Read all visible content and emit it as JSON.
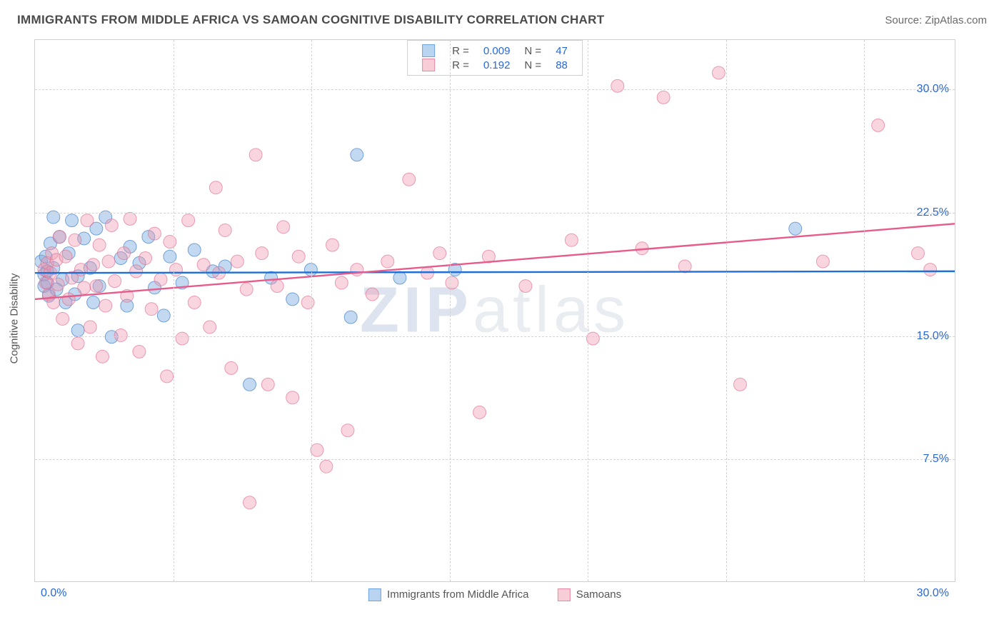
{
  "header": {
    "title": "IMMIGRANTS FROM MIDDLE AFRICA VS SAMOAN COGNITIVE DISABILITY CORRELATION CHART",
    "source_prefix": "Source: ",
    "source_name": "ZipAtlas.com"
  },
  "chart": {
    "type": "scatter",
    "ylabel": "Cognitive Disability",
    "watermark_bold": "ZIP",
    "watermark_rest": "atlas",
    "xlim": [
      0,
      30
    ],
    "ylim": [
      0,
      33
    ],
    "xtick_min_label": "0.0%",
    "xtick_max_label": "30.0%",
    "ytick_labels": [
      "7.5%",
      "15.0%",
      "22.5%",
      "30.0%"
    ],
    "ytick_values": [
      7.5,
      15.0,
      22.5,
      30.0
    ],
    "x_gridline_values": [
      4.5,
      9.0,
      13.5,
      18.0,
      22.5,
      27.0
    ],
    "grid_color": "#d5d5d5",
    "background_color": "#ffffff",
    "series": [
      {
        "name": "Immigrants from Middle Africa",
        "swatch_fill": "#b9d4f0",
        "swatch_stroke": "#6fa3dd",
        "marker_fill": "rgba(120,170,225,0.45)",
        "marker_stroke": "rgba(70,130,200,0.7)",
        "marker_radius": 9,
        "r_value": "0.009",
        "n_value": "47",
        "trend": {
          "y_at_xmin": 18.8,
          "y_at_xmax": 18.9,
          "stroke": "#1f6fd4",
          "width": 2.4
        },
        "points": [
          [
            0.2,
            19.5
          ],
          [
            0.3,
            18.0
          ],
          [
            0.3,
            18.7
          ],
          [
            0.35,
            19.8
          ],
          [
            0.4,
            18.2
          ],
          [
            0.4,
            18.9
          ],
          [
            0.45,
            17.4
          ],
          [
            0.5,
            20.6
          ],
          [
            0.6,
            22.2
          ],
          [
            0.6,
            19.1
          ],
          [
            0.7,
            17.8
          ],
          [
            0.8,
            21.0
          ],
          [
            0.9,
            18.4
          ],
          [
            1.0,
            17.0
          ],
          [
            1.1,
            20.0
          ],
          [
            1.2,
            22.0
          ],
          [
            1.3,
            17.5
          ],
          [
            1.4,
            15.3
          ],
          [
            1.4,
            18.6
          ],
          [
            1.6,
            20.9
          ],
          [
            1.8,
            19.1
          ],
          [
            1.9,
            17.0
          ],
          [
            2.0,
            21.5
          ],
          [
            2.1,
            18.0
          ],
          [
            2.3,
            22.2
          ],
          [
            2.5,
            14.9
          ],
          [
            2.8,
            19.7
          ],
          [
            3.0,
            16.8
          ],
          [
            3.1,
            20.4
          ],
          [
            3.4,
            19.4
          ],
          [
            3.7,
            21.0
          ],
          [
            3.9,
            17.9
          ],
          [
            4.2,
            16.2
          ],
          [
            4.4,
            19.8
          ],
          [
            4.8,
            18.2
          ],
          [
            5.2,
            20.2
          ],
          [
            5.8,
            18.9
          ],
          [
            6.2,
            19.2
          ],
          [
            7.0,
            12.0
          ],
          [
            7.7,
            18.5
          ],
          [
            8.4,
            17.2
          ],
          [
            9.0,
            19.0
          ],
          [
            10.3,
            16.1
          ],
          [
            10.5,
            26.0
          ],
          [
            11.9,
            18.5
          ],
          [
            13.7,
            19.0
          ],
          [
            24.8,
            21.5
          ]
        ]
      },
      {
        "name": "Samoans",
        "swatch_fill": "#f7cdd8",
        "swatch_stroke": "#e88aa5",
        "marker_fill": "rgba(240,150,175,0.40)",
        "marker_stroke": "rgba(225,110,145,0.65)",
        "marker_radius": 9,
        "r_value": "0.192",
        "n_value": "88",
        "trend": {
          "y_at_xmin": 17.2,
          "y_at_xmax": 21.8,
          "stroke": "#e75b8a",
          "width": 2.4
        },
        "points": [
          [
            0.3,
            19.0
          ],
          [
            0.35,
            18.2
          ],
          [
            0.4,
            19.4
          ],
          [
            0.45,
            17.5
          ],
          [
            0.5,
            18.8
          ],
          [
            0.55,
            20.0
          ],
          [
            0.6,
            17.0
          ],
          [
            0.7,
            19.6
          ],
          [
            0.75,
            18.1
          ],
          [
            0.8,
            21.0
          ],
          [
            0.9,
            16.0
          ],
          [
            1.0,
            19.8
          ],
          [
            1.1,
            17.2
          ],
          [
            1.2,
            18.5
          ],
          [
            1.3,
            20.8
          ],
          [
            1.4,
            14.5
          ],
          [
            1.5,
            19.0
          ],
          [
            1.6,
            17.9
          ],
          [
            1.7,
            22.0
          ],
          [
            1.8,
            15.5
          ],
          [
            1.9,
            19.3
          ],
          [
            2.0,
            18.0
          ],
          [
            2.1,
            20.5
          ],
          [
            2.2,
            13.7
          ],
          [
            2.3,
            16.8
          ],
          [
            2.4,
            19.5
          ],
          [
            2.5,
            21.7
          ],
          [
            2.6,
            18.3
          ],
          [
            2.8,
            15.0
          ],
          [
            2.9,
            20.0
          ],
          [
            3.0,
            17.4
          ],
          [
            3.1,
            22.1
          ],
          [
            3.3,
            18.9
          ],
          [
            3.4,
            14.0
          ],
          [
            3.6,
            19.7
          ],
          [
            3.8,
            16.6
          ],
          [
            3.9,
            21.2
          ],
          [
            4.1,
            18.4
          ],
          [
            4.3,
            12.5
          ],
          [
            4.4,
            20.7
          ],
          [
            4.6,
            19.0
          ],
          [
            4.8,
            14.8
          ],
          [
            5.0,
            22.0
          ],
          [
            5.2,
            17.0
          ],
          [
            5.5,
            19.3
          ],
          [
            5.7,
            15.5
          ],
          [
            5.9,
            24.0
          ],
          [
            6.0,
            18.8
          ],
          [
            6.2,
            21.4
          ],
          [
            6.4,
            13.0
          ],
          [
            6.6,
            19.5
          ],
          [
            6.9,
            17.8
          ],
          [
            7.0,
            4.8
          ],
          [
            7.2,
            26.0
          ],
          [
            7.4,
            20.0
          ],
          [
            7.6,
            12.0
          ],
          [
            7.9,
            18.0
          ],
          [
            8.1,
            21.6
          ],
          [
            8.4,
            11.2
          ],
          [
            8.6,
            19.8
          ],
          [
            8.9,
            17.0
          ],
          [
            9.2,
            8.0
          ],
          [
            9.5,
            7.0
          ],
          [
            9.7,
            20.5
          ],
          [
            10.0,
            18.2
          ],
          [
            10.2,
            9.2
          ],
          [
            10.5,
            19.0
          ],
          [
            11.0,
            17.5
          ],
          [
            11.5,
            19.5
          ],
          [
            12.2,
            24.5
          ],
          [
            12.8,
            18.8
          ],
          [
            13.2,
            20.0
          ],
          [
            13.6,
            18.2
          ],
          [
            14.5,
            10.3
          ],
          [
            14.8,
            19.8
          ],
          [
            16.0,
            18.0
          ],
          [
            17.5,
            20.8
          ],
          [
            18.2,
            14.8
          ],
          [
            19.0,
            30.2
          ],
          [
            19.8,
            20.3
          ],
          [
            20.5,
            29.5
          ],
          [
            21.2,
            19.2
          ],
          [
            22.3,
            31.0
          ],
          [
            23.0,
            12.0
          ],
          [
            25.7,
            19.5
          ],
          [
            27.5,
            27.8
          ],
          [
            28.8,
            20.0
          ],
          [
            29.2,
            19.0
          ]
        ]
      }
    ],
    "legend_top": {
      "r_label": "R =",
      "n_label": "N ="
    }
  }
}
